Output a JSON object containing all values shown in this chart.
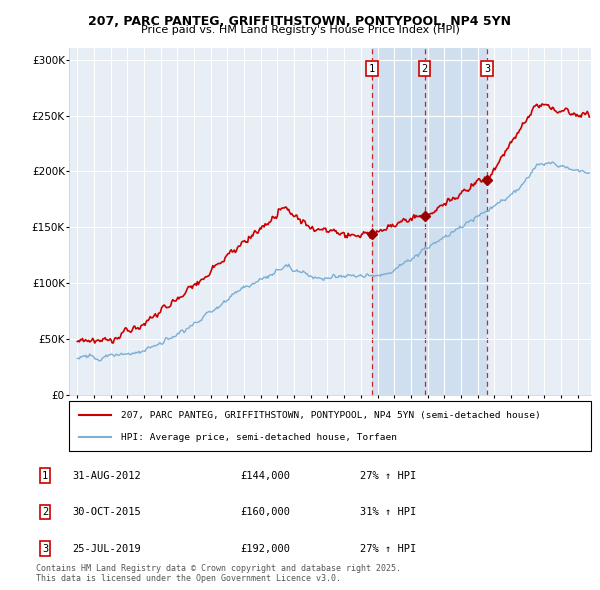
{
  "title1": "207, PARC PANTEG, GRIFFITHSTOWN, PONTYPOOL, NP4 5YN",
  "title2": "Price paid vs. HM Land Registry's House Price Index (HPI)",
  "legend1": "207, PARC PANTEG, GRIFFITHSTOWN, PONTYPOOL, NP4 5YN (semi-detached house)",
  "legend2": "HPI: Average price, semi-detached house, Torfaen",
  "footer": "Contains HM Land Registry data © Crown copyright and database right 2025.\nThis data is licensed under the Open Government Licence v3.0.",
  "sales": [
    {
      "num": 1,
      "date": "31-AUG-2012",
      "price": 144000,
      "pct": "27%",
      "dir": "↑",
      "year": 2012.67
    },
    {
      "num": 2,
      "date": "30-OCT-2015",
      "price": 160000,
      "pct": "31%",
      "dir": "↑",
      "year": 2015.83
    },
    {
      "num": 3,
      "date": "25-JUL-2019",
      "price": 192000,
      "pct": "27%",
      "dir": "↑",
      "year": 2019.57
    }
  ],
  "red_color": "#cc0000",
  "blue_color": "#7bafd4",
  "background_chart": "#e8eef5",
  "highlight_color": "#d0dff0",
  "grid_color": "#ffffff",
  "ylim": [
    0,
    310000
  ],
  "xlim_start": 1994.5,
  "xlim_end": 2025.8
}
